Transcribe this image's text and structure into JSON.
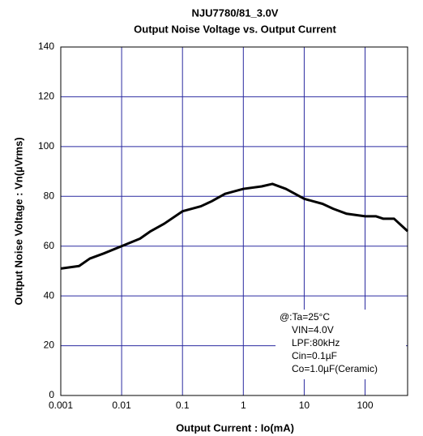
{
  "chart_data": {
    "type": "line",
    "title": "NJU7780/81_3.0V",
    "subtitle": "Output Noise Voltage vs. Output Current",
    "xlabel": "Output Current : Io(mA)",
    "ylabel": "Output Noise Voltage : Vn(µVrms)",
    "xscale": "log",
    "grid": true,
    "grid_color": "#2a2aa0",
    "xlim": [
      0.001,
      500
    ],
    "ylim": [
      0,
      140
    ],
    "xticks": [
      0.001,
      0.01,
      0.1,
      1,
      10,
      100
    ],
    "yticks": [
      0,
      20,
      40,
      60,
      80,
      100,
      120,
      140
    ],
    "annotation": [
      "@:Ta=25°C",
      "VIN=4.0V",
      "LPF:80kHz",
      "Cin=0.1µF",
      "Co=1.0µF(Ceramic)"
    ],
    "series": [
      {
        "color": "#000000",
        "x": [
          0.001,
          0.002,
          0.003,
          0.005,
          0.01,
          0.02,
          0.03,
          0.05,
          0.1,
          0.2,
          0.3,
          0.5,
          1,
          2,
          3,
          5,
          10,
          20,
          30,
          50,
          100,
          150,
          200,
          300,
          500
        ],
        "values": [
          51,
          52,
          55,
          57,
          60,
          63,
          66,
          69,
          74,
          76,
          78,
          81,
          83,
          84,
          85,
          83,
          79,
          77,
          75,
          73,
          72,
          72,
          71,
          71,
          66
        ]
      }
    ]
  }
}
